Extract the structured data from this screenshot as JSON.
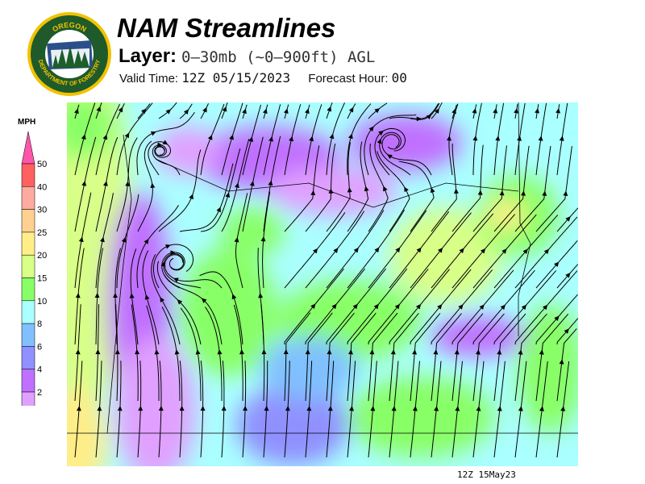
{
  "header": {
    "title": "NAM Streamlines",
    "layer_label": "Layer:",
    "layer_value": "0–30mb (~0–900ft) AGL",
    "valid_label": "Valid Time:",
    "valid_value": "12Z 05/15/2023",
    "forecast_label": "Forecast Hour:",
    "forecast_value": "00"
  },
  "logo": {
    "top_text": "OREGON",
    "bottom_text": "DEPARTMENT OF FORESTRY"
  },
  "legend": {
    "unit": "MPH",
    "levels": [
      {
        "label": "50",
        "color": "#ff6060"
      },
      {
        "label": "40",
        "color": "#ffaaa0"
      },
      {
        "label": "30",
        "color": "#ffd090"
      },
      {
        "label": "25",
        "color": "#ffee88"
      },
      {
        "label": "20",
        "color": "#d8ff88"
      },
      {
        "label": "15",
        "color": "#88ff66"
      },
      {
        "label": "10",
        "color": "#aaffff"
      },
      {
        "label": "8",
        "color": "#80c0ff"
      },
      {
        "label": "6",
        "color": "#9090ff"
      },
      {
        "label": "4",
        "color": "#c070ff"
      },
      {
        "label": "2",
        "color": "#e0a0ff"
      }
    ],
    "top_arrow_color": "#ff55aa"
  },
  "footer": {
    "stamp": "12Z 15May23"
  }
}
